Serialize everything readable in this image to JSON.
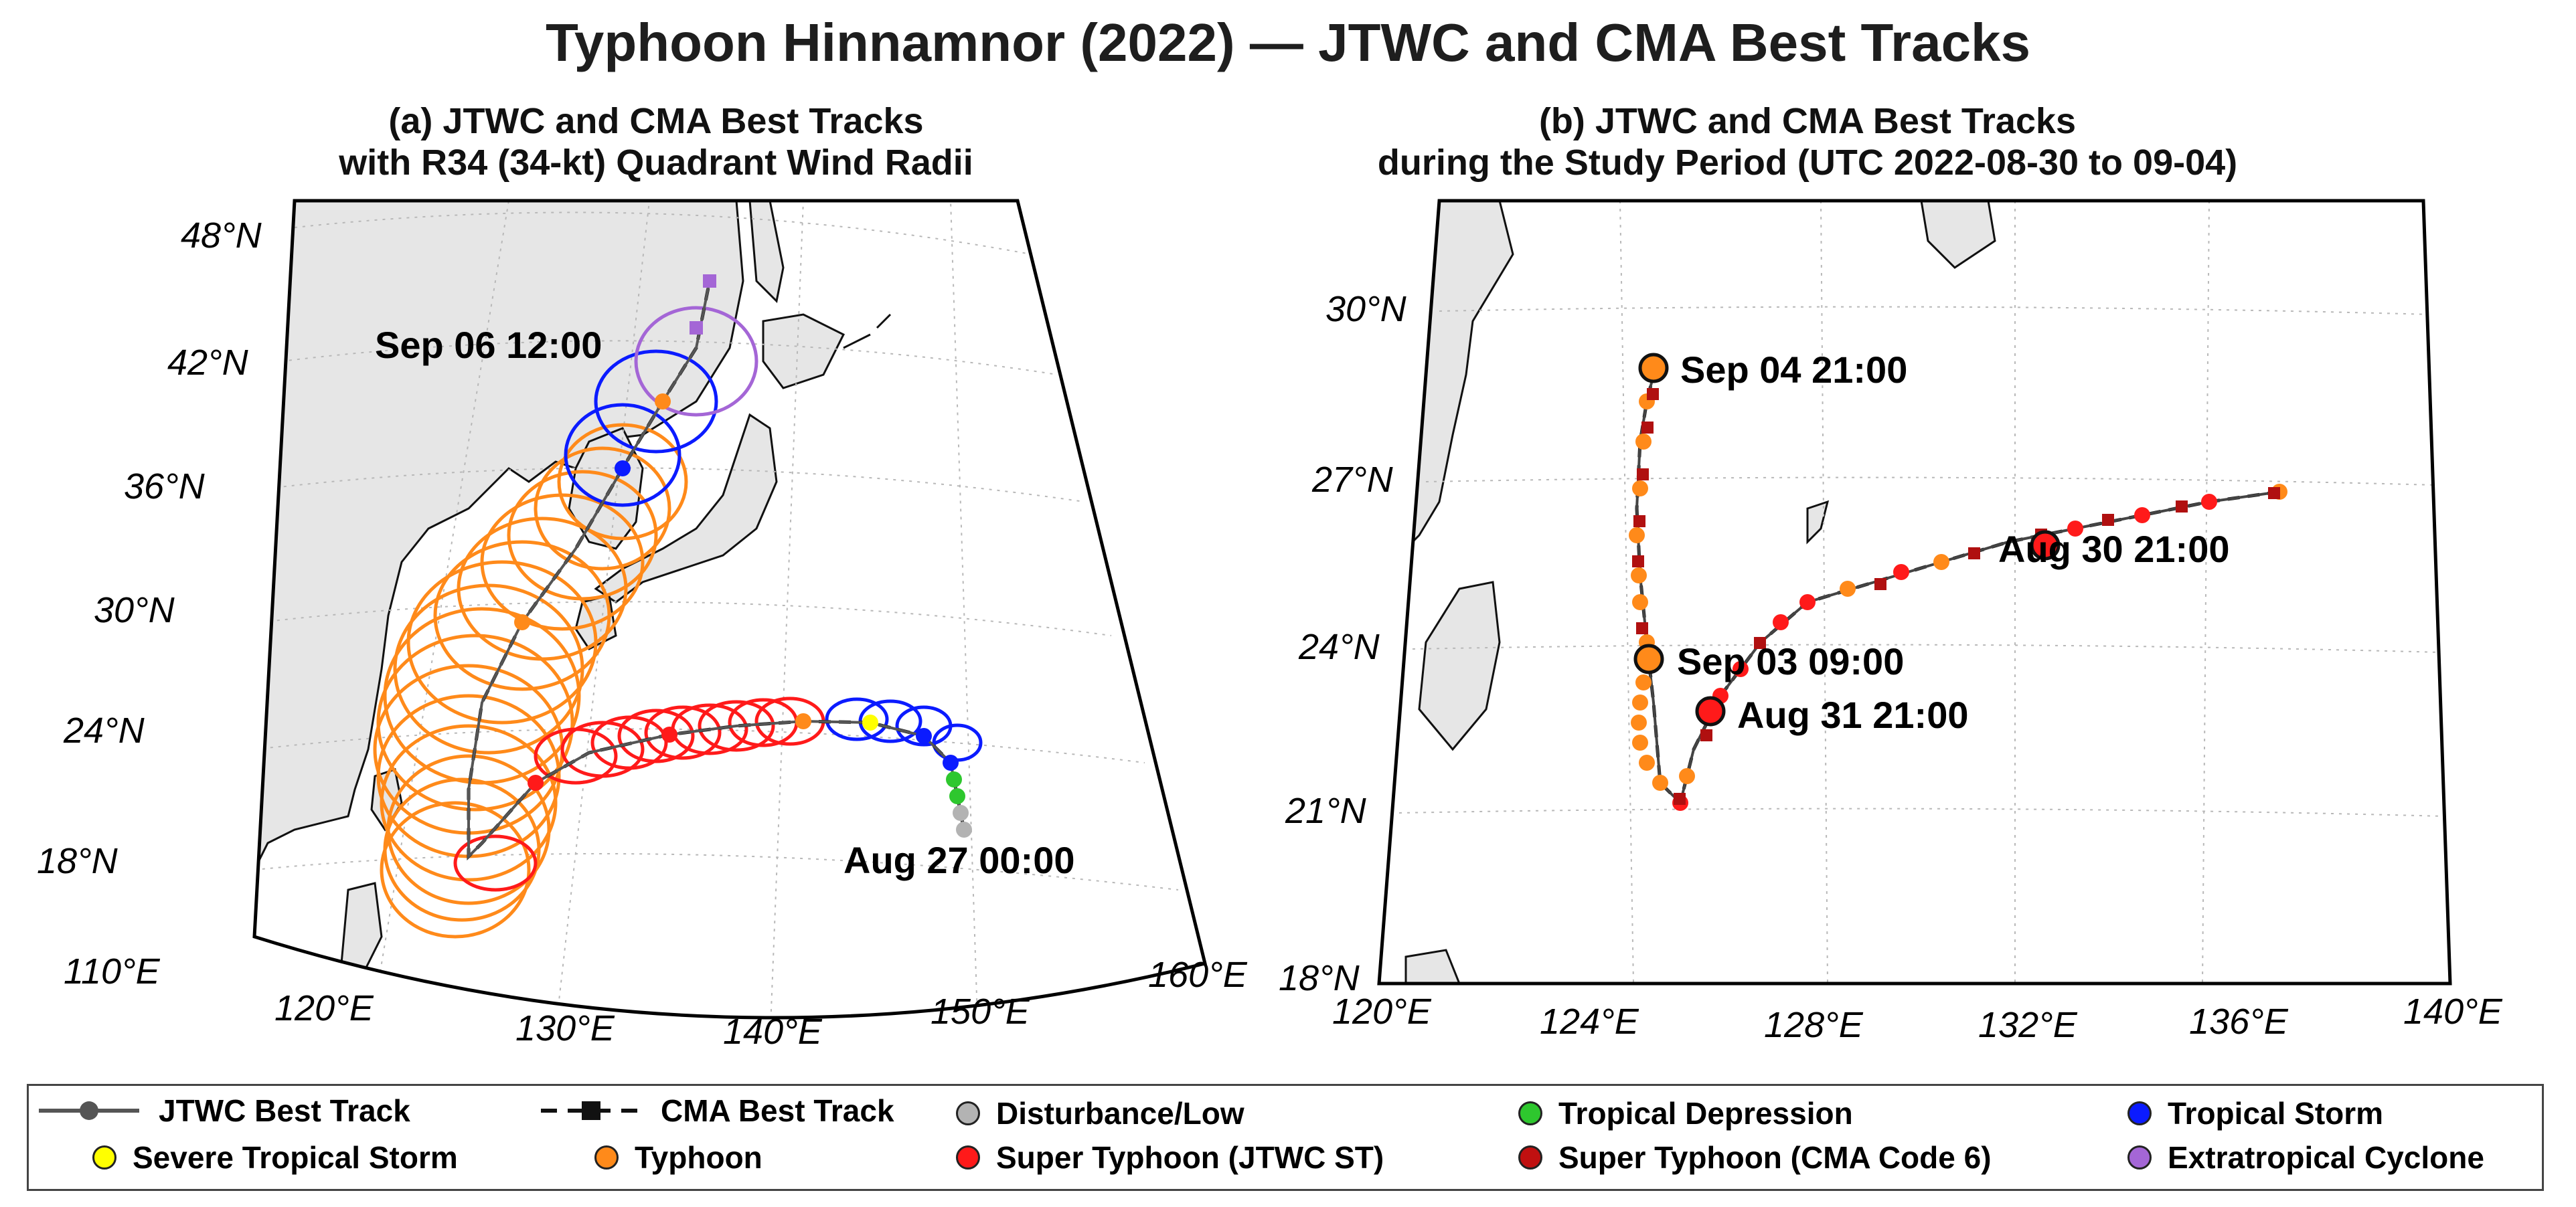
{
  "figure": {
    "title": "Typhoon Hinnamnor (2022) — JTWC and CMA Best Tracks"
  },
  "colors": {
    "land": "#e6e6e6",
    "disturbance": "#b3b3b3",
    "td": "#2ec72e",
    "ts": "#0b1bff",
    "sts": "#ffff00",
    "ty": "#ff8a1a",
    "sty_jtwc": "#ff1a1a",
    "sty_cma": "#c01010",
    "et": "#a466d6",
    "cma_marker": "#b01010"
  },
  "panel_a": {
    "title_line1": "(a) JTWC and CMA Best Tracks",
    "title_line2": "with R34 (34-kt) Quadrant Wind Radii",
    "lat_labels": [
      "48°N",
      "42°N",
      "36°N",
      "30°N",
      "24°N",
      "18°N"
    ],
    "lon_labels": [
      "110°E",
      "120°E",
      "130°E",
      "140°E",
      "150°E",
      "160°E"
    ],
    "annotations": [
      "Sep 06 12:00",
      "Aug 27 00:00"
    ]
  },
  "panel_b": {
    "title_line1": "(b) JTWC and CMA Best Tracks",
    "title_line2": "during the Study Period (UTC 2022-08-30 to 09-04)",
    "lat_labels": [
      "30°N",
      "27°N",
      "24°N",
      "21°N",
      "18°N"
    ],
    "lon_labels": [
      "120°E",
      "124°E",
      "128°E",
      "132°E",
      "136°E",
      "140°E"
    ],
    "annotations": [
      "Sep 04 21:00",
      "Aug 30 21:00",
      "Sep 03 09:00",
      "Aug 31 21:00"
    ]
  },
  "legend": {
    "jtwc": "JTWC Best Track",
    "cma": "CMA Best Track",
    "disturbance": "Disturbance/Low",
    "td": "Tropical Depression",
    "ts": "Tropical Storm",
    "sts": "Severe Tropical Storm",
    "ty": "Typhoon",
    "sty_jtwc": "Super Typhoon (JTWC ST)",
    "sty_cma": "Super Typhoon (CMA Code 6)",
    "et": "Extratropical Cyclone"
  }
}
